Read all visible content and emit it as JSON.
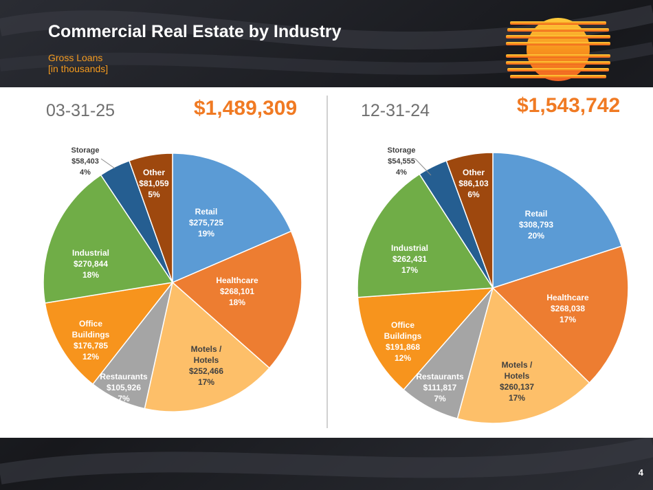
{
  "slide": {
    "title": "Commercial Real Estate by Industry",
    "subtitle_line1": "Gross Loans",
    "subtitle_line2": "[in thousands]",
    "page_number": "4"
  },
  "colors": {
    "accent": "#f59b1f",
    "total": "#f07a23",
    "date": "#6f6f6f"
  },
  "chart_data": [
    {
      "type": "pie",
      "title": "03-31-25",
      "total_label": "$1,489,309",
      "slices": [
        {
          "name": "Retail",
          "lines": [
            "Retail"
          ],
          "amount": "$275,725",
          "value": 275725,
          "pct": "19%",
          "color": "#5b9bd5",
          "text_color": "#ffffff"
        },
        {
          "name": "Healthcare",
          "lines": [
            "Healthcare"
          ],
          "amount": "$268,101",
          "value": 268101,
          "pct": "18%",
          "color": "#ed7d31",
          "text_color": "#ffffff"
        },
        {
          "name": "Motels / Hotels",
          "lines": [
            "Motels /",
            "Hotels"
          ],
          "amount": "$252,466",
          "value": 252466,
          "pct": "17%",
          "color": "#fdbf69",
          "text_color": "#404040"
        },
        {
          "name": "Restaurants",
          "lines": [
            "Restaurants"
          ],
          "amount": "$105,926",
          "value": 105926,
          "pct": "7%",
          "color": "#a5a5a5",
          "text_color": "#ffffff"
        },
        {
          "name": "Office Buildings",
          "lines": [
            "Office",
            "Buildings"
          ],
          "amount": "$176,785",
          "value": 176785,
          "pct": "12%",
          "color": "#f7941d",
          "text_color": "#ffffff"
        },
        {
          "name": "Industrial",
          "lines": [
            "Industrial"
          ],
          "amount": "$270,844",
          "value": 270844,
          "pct": "18%",
          "color": "#70ad47",
          "text_color": "#ffffff"
        },
        {
          "name": "Storage",
          "lines": [
            "Storage"
          ],
          "amount": "$58,403",
          "value": 58403,
          "pct": "4%",
          "color": "#255e91",
          "text_color": "#404040"
        },
        {
          "name": "Other",
          "lines": [
            "Other"
          ],
          "amount": "$81,059",
          "value": 81059,
          "pct": "5%",
          "color": "#9e480e",
          "text_color": "#ffffff"
        }
      ]
    },
    {
      "type": "pie",
      "title": "12-31-24",
      "total_label": "$1,543,742",
      "slices": [
        {
          "name": "Retail",
          "lines": [
            "Retail"
          ],
          "amount": "$308,793",
          "value": 308793,
          "pct": "20%",
          "color": "#5b9bd5",
          "text_color": "#ffffff"
        },
        {
          "name": "Healthcare",
          "lines": [
            "Healthcare"
          ],
          "amount": "$268,038",
          "value": 268038,
          "pct": "17%",
          "color": "#ed7d31",
          "text_color": "#ffffff"
        },
        {
          "name": "Motels / Hotels",
          "lines": [
            "Motels /",
            "Hotels"
          ],
          "amount": "$260,137",
          "value": 260137,
          "pct": "17%",
          "color": "#fdbf69",
          "text_color": "#404040"
        },
        {
          "name": "Restaurants",
          "lines": [
            "Restaurants"
          ],
          "amount": "$111,817",
          "value": 111817,
          "pct": "7%",
          "color": "#a5a5a5",
          "text_color": "#ffffff"
        },
        {
          "name": "Office Buildings",
          "lines": [
            "Office",
            "Buildings"
          ],
          "amount": "$191,868",
          "value": 191868,
          "pct": "12%",
          "color": "#f7941d",
          "text_color": "#ffffff"
        },
        {
          "name": "Industrial",
          "lines": [
            "Industrial"
          ],
          "amount": "$262,431",
          "value": 262431,
          "pct": "17%",
          "color": "#70ad47",
          "text_color": "#ffffff"
        },
        {
          "name": "Storage",
          "lines": [
            "Storage"
          ],
          "amount": "$54,555",
          "value": 54555,
          "pct": "4%",
          "color": "#255e91",
          "text_color": "#404040"
        },
        {
          "name": "Other",
          "lines": [
            "Other"
          ],
          "amount": "$86,103",
          "value": 86103,
          "pct": "6%",
          "color": "#9e480e",
          "text_color": "#ffffff"
        }
      ]
    }
  ]
}
